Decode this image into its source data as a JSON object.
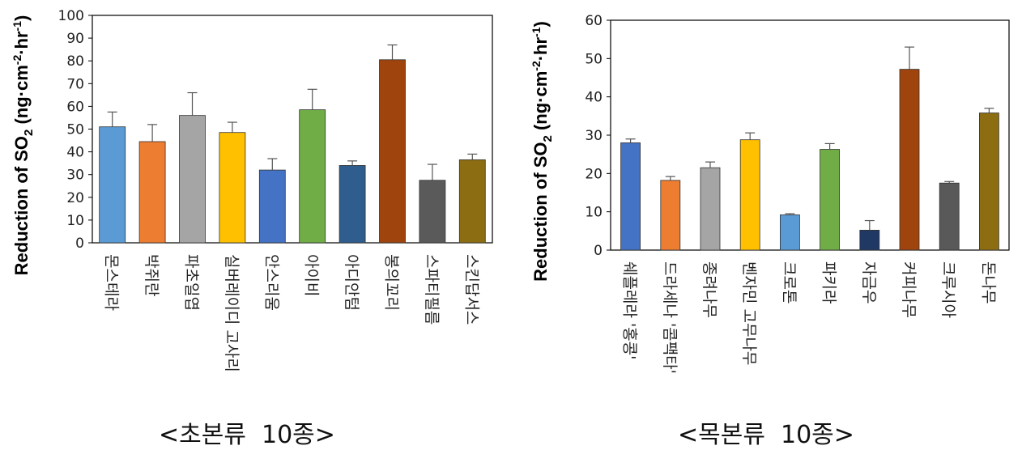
{
  "chart_data": [
    {
      "type": "bar",
      "ylabel_main": "Reduction of SO",
      "ylabel_sub": "2",
      "ylabel_unit_open": " (ng·cm",
      "ylabel_sup1": "-2",
      "ylabel_mid": "·hr",
      "ylabel_sup2": "-1",
      "ylabel_close": ")",
      "ylim": [
        0,
        100
      ],
      "yticks": [
        0,
        10,
        20,
        30,
        40,
        50,
        60,
        70,
        80,
        90,
        100
      ],
      "categories": [
        "몬스테라",
        "박쥐란",
        "파초일엽",
        "실버레이디 고사리",
        "안스리움",
        "아이비",
        "아디안텀",
        "봉의꼬리",
        "스파티필름",
        "스킨답서스"
      ],
      "values": [
        51,
        44.5,
        56,
        48.5,
        32,
        58.5,
        34,
        80.5,
        27.5,
        36.5
      ],
      "errors": [
        6.5,
        7.5,
        10,
        4.5,
        5,
        9,
        2,
        6.5,
        7,
        2.5
      ],
      "colors": [
        "#5b9bd5",
        "#ed7d31",
        "#a5a5a5",
        "#ffc000",
        "#4472c4",
        "#70ad47",
        "#2e5d8e",
        "#a0440e",
        "#5a5a5a",
        "#8c6d12"
      ],
      "caption": "<초본류  10종>",
      "grid": false
    },
    {
      "type": "bar",
      "ylabel_main": "Reduction of SO",
      "ylabel_sub": "2",
      "ylabel_unit_open": " (ng·cm",
      "ylabel_sup1": "-2",
      "ylabel_mid": "·hr",
      "ylabel_sup2": "-1",
      "ylabel_close": ")",
      "ylim": [
        0,
        60
      ],
      "yticks": [
        0,
        10,
        20,
        30,
        40,
        50,
        60
      ],
      "categories": [
        "쉐플레라 '홍콩'",
        "드라세나 '콤팩타'",
        "종려나무",
        "벤자민 고무나무",
        "크로톤",
        "파키라",
        "자금우",
        "커피나무",
        "크루시아",
        "돈나무"
      ],
      "values": [
        28,
        18.2,
        21.5,
        28.8,
        9.2,
        26.3,
        5.2,
        47.2,
        17.5,
        35.8
      ],
      "errors": [
        1,
        1,
        1.5,
        1.8,
        0.3,
        1.5,
        2.5,
        5.8,
        0.4,
        1.2
      ],
      "colors": [
        "#4472c4",
        "#ed7d31",
        "#a5a5a5",
        "#ffc000",
        "#5b9bd5",
        "#70ad47",
        "#1f3864",
        "#a0440e",
        "#595959",
        "#8c6d12"
      ],
      "caption": "<목본류  10종>",
      "grid": false
    }
  ]
}
